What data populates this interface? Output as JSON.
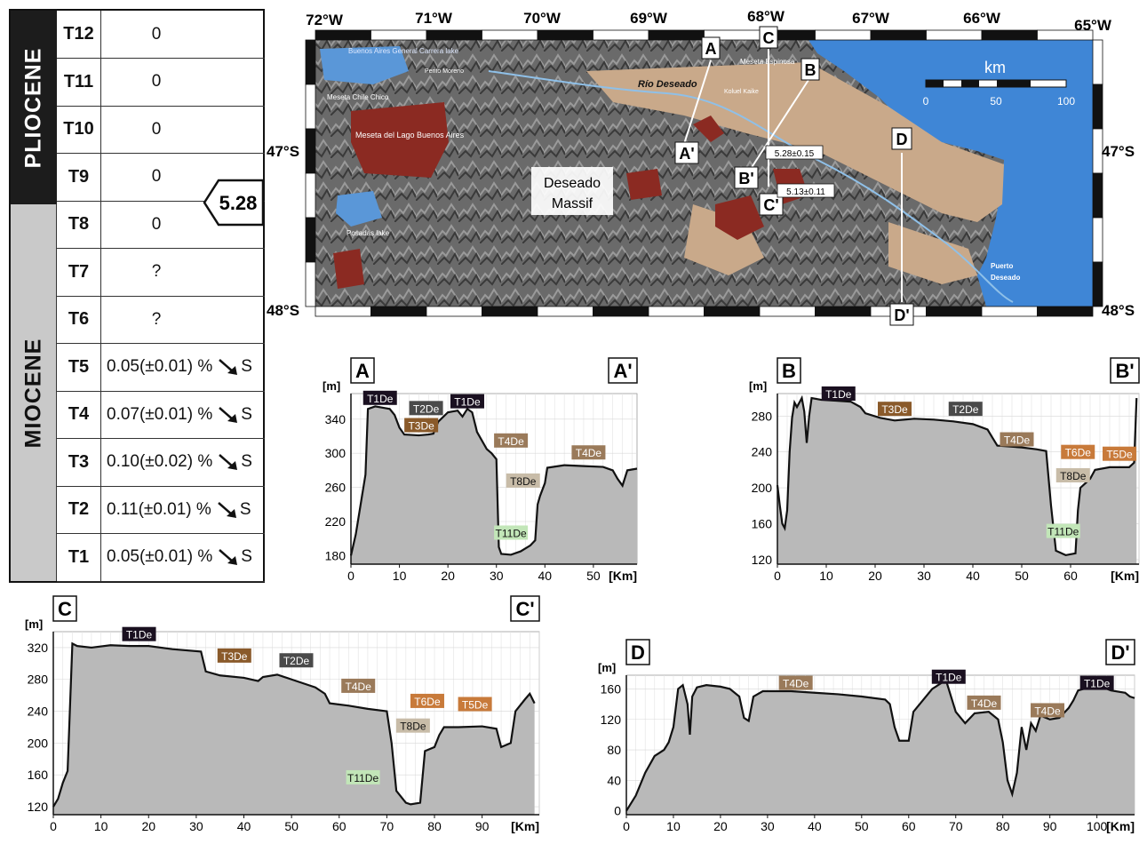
{
  "table": {
    "epochs": {
      "pliocene": "PLIOCENE",
      "miocene": "MIOCENE"
    },
    "age_marker": "5.28",
    "rows": [
      {
        "terrace": "T12",
        "value": "0"
      },
      {
        "terrace": "T11",
        "value": "0"
      },
      {
        "terrace": "T10",
        "value": "0"
      },
      {
        "terrace": "T9",
        "value": "0"
      },
      {
        "terrace": "T8",
        "value": "0"
      },
      {
        "terrace": "T7",
        "value": "?"
      },
      {
        "terrace": "T6",
        "value": "?"
      },
      {
        "terrace": "T5",
        "value": "0.05(±0.01) %",
        "dir": "S"
      },
      {
        "terrace": "T4",
        "value": "0.07(±0.01) %",
        "dir": "S"
      },
      {
        "terrace": "T3",
        "value": "0.10(±0.02) %",
        "dir": "S"
      },
      {
        "terrace": "T2",
        "value": "0.11(±0.01) %",
        "dir": "S"
      },
      {
        "terrace": "T1",
        "value": "0.05(±0.01) %",
        "dir": "S"
      }
    ]
  },
  "map": {
    "lon_labels": [
      "72°W",
      "71°W",
      "70°W",
      "69°W",
      "68°W",
      "67°W",
      "66°W",
      "65°W"
    ],
    "lat_labels": {
      "n47_left": "47°S",
      "n47_right": "47°S",
      "n48_left": "48°S",
      "n48_right": "48°S"
    },
    "scale": {
      "title": "km",
      "ticks": [
        "0",
        "50",
        "100"
      ]
    },
    "places": {
      "buenos_aires": "Buenos Aires General Carrera lake",
      "perito": "Perito Moreno",
      "meseta_chile": "Meseta Chile Chico",
      "meseta_lago": "Meseta del Lago Buenos Aires",
      "posadas": "Posadas lake",
      "rio": "Río Deseado",
      "koluel": "Koluel Kaike",
      "meseta_esp": "Meseta Espinosa",
      "massif": [
        "Deseado",
        "Massif"
      ],
      "puerto": [
        "Puerto",
        "Deseado"
      ]
    },
    "section_markers": {
      "A": "A",
      "A2": "A'",
      "B": "B",
      "B2": "B'",
      "C": "C",
      "C2": "C'",
      "D": "D",
      "D2": "D'"
    },
    "ages": {
      "a1": "5.28±0.15",
      "a2": "5.13±0.11"
    },
    "colors": {
      "sea": "#3f86d6",
      "basalt": "#8b2a22",
      "terrace": "#c9a98a",
      "relief": "#6f6f6f"
    }
  },
  "profiles": {
    "A": {
      "start": "A",
      "end": "A'",
      "yunit": "[m]",
      "xunit": "[Km]",
      "xticks": [
        0,
        10,
        20,
        30,
        40,
        50
      ],
      "yticks": [
        180,
        220,
        260,
        300,
        340
      ],
      "xlim": [
        0,
        59
      ],
      "ylim": [
        170,
        370
      ],
      "profile": [
        [
          0,
          180
        ],
        [
          1,
          205
        ],
        [
          2,
          240
        ],
        [
          3,
          275
        ],
        [
          3.5,
          352
        ],
        [
          5,
          355
        ],
        [
          7,
          353
        ],
        [
          8,
          352
        ],
        [
          9,
          345
        ],
        [
          10,
          330
        ],
        [
          11,
          322
        ],
        [
          14,
          321
        ],
        [
          16,
          322
        ],
        [
          17,
          323
        ],
        [
          18,
          337
        ],
        [
          20,
          348
        ],
        [
          22,
          350
        ],
        [
          23,
          343
        ],
        [
          24,
          352
        ],
        [
          25,
          348
        ],
        [
          26,
          325
        ],
        [
          27,
          315
        ],
        [
          28,
          305
        ],
        [
          29,
          300
        ],
        [
          30,
          293
        ],
        [
          30.5,
          190
        ],
        [
          31,
          182
        ],
        [
          33,
          181
        ],
        [
          35,
          185
        ],
        [
          37,
          192
        ],
        [
          38,
          198
        ],
        [
          38.5,
          240
        ],
        [
          39,
          250
        ],
        [
          40,
          265
        ],
        [
          40.5,
          283
        ],
        [
          44,
          286
        ],
        [
          48,
          285
        ],
        [
          52,
          284
        ],
        [
          54,
          280
        ],
        [
          55,
          270
        ],
        [
          56,
          262
        ],
        [
          57,
          280
        ],
        [
          59,
          282
        ]
      ],
      "labels": [
        {
          "text": "T1De",
          "x": 6,
          "y": 365,
          "color": "#1a1020"
        },
        {
          "text": "T2De",
          "x": 15.5,
          "y": 353,
          "color": "#4a4a4a"
        },
        {
          "text": "T3De",
          "x": 14.5,
          "y": 333,
          "color": "#8a5a2a"
        },
        {
          "text": "T1De",
          "x": 24,
          "y": 361,
          "color": "#1a1020"
        },
        {
          "text": "T4De",
          "x": 33,
          "y": 315,
          "color": "#9a7a5a"
        },
        {
          "text": "T8De",
          "x": 35.5,
          "y": 268,
          "color": "#c8bca8"
        },
        {
          "text": "T11De",
          "x": 33,
          "y": 207,
          "color": "#c2e6b8"
        },
        {
          "text": "T4De",
          "x": 49,
          "y": 301,
          "color": "#9a7a5a"
        }
      ]
    },
    "B": {
      "start": "B",
      "end": "B'",
      "yunit": "[m]",
      "xunit": "[Km]",
      "xticks": [
        0,
        10,
        20,
        30,
        40,
        50,
        60
      ],
      "yticks": [
        120,
        160,
        200,
        240,
        280
      ],
      "xlim": [
        0,
        74
      ],
      "ylim": [
        115,
        305
      ],
      "profile": [
        [
          0,
          203
        ],
        [
          0.5,
          180
        ],
        [
          1,
          160
        ],
        [
          1.5,
          155
        ],
        [
          2,
          175
        ],
        [
          2.5,
          240
        ],
        [
          3,
          278
        ],
        [
          3.5,
          295
        ],
        [
          4,
          290
        ],
        [
          5,
          300
        ],
        [
          5.5,
          285
        ],
        [
          6,
          250
        ],
        [
          6.5,
          280
        ],
        [
          7,
          300
        ],
        [
          9,
          298
        ],
        [
          12,
          297
        ],
        [
          15,
          296
        ],
        [
          17,
          290
        ],
        [
          18,
          283
        ],
        [
          21,
          278
        ],
        [
          24,
          275
        ],
        [
          28,
          277
        ],
        [
          32,
          276
        ],
        [
          36,
          274
        ],
        [
          40,
          271
        ],
        [
          43,
          265
        ],
        [
          44,
          256
        ],
        [
          45,
          247
        ],
        [
          50,
          245
        ],
        [
          53,
          243
        ],
        [
          55,
          241
        ],
        [
          56,
          180
        ],
        [
          57,
          130
        ],
        [
          59,
          125
        ],
        [
          61,
          127
        ],
        [
          61.5,
          175
        ],
        [
          62,
          200
        ],
        [
          63,
          205
        ],
        [
          64,
          210
        ],
        [
          65,
          220
        ],
        [
          68,
          223
        ],
        [
          72,
          223
        ],
        [
          73,
          228
        ],
        [
          73.5,
          300
        ]
      ],
      "labels": [
        {
          "text": "T1De",
          "x": 12.5,
          "y": 305,
          "color": "#1a1020"
        },
        {
          "text": "T3De",
          "x": 24,
          "y": 288,
          "color": "#8a5a2a"
        },
        {
          "text": "T2De",
          "x": 38.5,
          "y": 288,
          "color": "#4a4a4a"
        },
        {
          "text": "T4De",
          "x": 49,
          "y": 254,
          "color": "#9a7a5a"
        },
        {
          "text": "T6De",
          "x": 61.5,
          "y": 240,
          "color": "#c87a3a"
        },
        {
          "text": "T5De",
          "x": 70,
          "y": 238,
          "color": "#c87a3a"
        },
        {
          "text": "T8De",
          "x": 60.5,
          "y": 214,
          "color": "#c8bca8"
        },
        {
          "text": "T11De",
          "x": 58.5,
          "y": 152,
          "color": "#c2e6b8"
        }
      ]
    },
    "C": {
      "start": "C",
      "end": "C'",
      "yunit": "[m]",
      "xunit": "[Km]",
      "xticks": [
        0,
        10,
        20,
        30,
        40,
        50,
        60,
        70,
        80,
        90
      ],
      "yticks": [
        120,
        160,
        200,
        240,
        280,
        320
      ],
      "xlim": [
        0,
        102
      ],
      "ylim": [
        110,
        340
      ],
      "profile": [
        [
          0,
          120
        ],
        [
          1,
          130
        ],
        [
          2,
          150
        ],
        [
          3,
          165
        ],
        [
          4,
          325
        ],
        [
          5,
          322
        ],
        [
          8,
          320
        ],
        [
          12,
          323
        ],
        [
          16,
          322
        ],
        [
          20,
          322
        ],
        [
          25,
          318
        ],
        [
          31,
          315
        ],
        [
          32,
          290
        ],
        [
          35,
          285
        ],
        [
          40,
          282
        ],
        [
          43,
          278
        ],
        [
          44,
          283
        ],
        [
          47,
          286
        ],
        [
          50,
          280
        ],
        [
          55,
          270
        ],
        [
          57,
          262
        ],
        [
          58,
          250
        ],
        [
          62,
          247
        ],
        [
          66,
          243
        ],
        [
          70,
          240
        ],
        [
          71,
          200
        ],
        [
          72,
          140
        ],
        [
          74,
          125
        ],
        [
          75,
          123
        ],
        [
          77,
          125
        ],
        [
          78,
          190
        ],
        [
          80,
          195
        ],
        [
          81,
          210
        ],
        [
          82,
          220
        ],
        [
          85,
          220
        ],
        [
          90,
          221
        ],
        [
          93,
          218
        ],
        [
          94,
          195
        ],
        [
          96,
          200
        ],
        [
          97,
          240
        ],
        [
          99,
          255
        ],
        [
          100,
          262
        ],
        [
          101,
          250
        ]
      ],
      "labels": [
        {
          "text": "T1De",
          "x": 18,
          "y": 337,
          "color": "#1a1020"
        },
        {
          "text": "T3De",
          "x": 38,
          "y": 310,
          "color": "#8a5a2a"
        },
        {
          "text": "T2De",
          "x": 51,
          "y": 304,
          "color": "#4a4a4a"
        },
        {
          "text": "T4De",
          "x": 64,
          "y": 272,
          "color": "#9a7a5a"
        },
        {
          "text": "T6De",
          "x": 78.5,
          "y": 253,
          "color": "#c87a3a"
        },
        {
          "text": "T5De",
          "x": 88.5,
          "y": 249,
          "color": "#c87a3a"
        },
        {
          "text": "T8De",
          "x": 75.5,
          "y": 222,
          "color": "#c8bca8"
        },
        {
          "text": "T11De",
          "x": 65,
          "y": 157,
          "color": "#c2e6b8"
        }
      ]
    },
    "D": {
      "start": "D",
      "end": "D'",
      "yunit": "[m]",
      "xunit": "[Km]",
      "xticks": [
        0,
        10,
        20,
        30,
        40,
        50,
        60,
        70,
        80,
        90,
        100
      ],
      "yticks": [
        0,
        40,
        80,
        120,
        160
      ],
      "xlim": [
        0,
        108
      ],
      "ylim": [
        -5,
        178
      ],
      "profile": [
        [
          0,
          0
        ],
        [
          2,
          20
        ],
        [
          4,
          50
        ],
        [
          6,
          72
        ],
        [
          8,
          80
        ],
        [
          9,
          90
        ],
        [
          10,
          110
        ],
        [
          11,
          160
        ],
        [
          12,
          165
        ],
        [
          13,
          140
        ],
        [
          13.5,
          100
        ],
        [
          14,
          150
        ],
        [
          15,
          162
        ],
        [
          17,
          165
        ],
        [
          20,
          163
        ],
        [
          22,
          160
        ],
        [
          24,
          150
        ],
        [
          25,
          122
        ],
        [
          26,
          118
        ],
        [
          27,
          150
        ],
        [
          29,
          157
        ],
        [
          35,
          157
        ],
        [
          40,
          155
        ],
        [
          45,
          153
        ],
        [
          50,
          150
        ],
        [
          55,
          146
        ],
        [
          56,
          140
        ],
        [
          57,
          110
        ],
        [
          58,
          92
        ],
        [
          60,
          92
        ],
        [
          61,
          130
        ],
        [
          63,
          145
        ],
        [
          65,
          160
        ],
        [
          67,
          168
        ],
        [
          68,
          170
        ],
        [
          69,
          150
        ],
        [
          70,
          130
        ],
        [
          72,
          115
        ],
        [
          74,
          128
        ],
        [
          77,
          130
        ],
        [
          79,
          120
        ],
        [
          80,
          90
        ],
        [
          81,
          40
        ],
        [
          82,
          22
        ],
        [
          83,
          50
        ],
        [
          84,
          110
        ],
        [
          85,
          80
        ],
        [
          86,
          115
        ],
        [
          87,
          105
        ],
        [
          88,
          125
        ],
        [
          90,
          120
        ],
        [
          92,
          122
        ],
        [
          94,
          135
        ],
        [
          95,
          145
        ],
        [
          96,
          158
        ],
        [
          100,
          165
        ],
        [
          103,
          158
        ],
        [
          106,
          155
        ],
        [
          107,
          150
        ],
        [
          108,
          148
        ]
      ],
      "labels": [
        {
          "text": "T4De",
          "x": 36,
          "y": 168,
          "color": "#9a7a5a"
        },
        {
          "text": "T1De",
          "x": 68.5,
          "y": 176,
          "color": "#1a1020"
        },
        {
          "text": "T4De",
          "x": 76,
          "y": 142,
          "color": "#9a7a5a"
        },
        {
          "text": "T4De",
          "x": 89.5,
          "y": 132,
          "color": "#9a7a5a"
        },
        {
          "text": "T1De",
          "x": 100,
          "y": 168,
          "color": "#1a1020"
        }
      ]
    }
  }
}
